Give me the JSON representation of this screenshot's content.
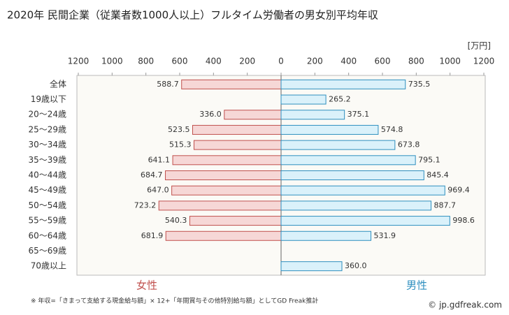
{
  "chart_data": {
    "type": "bar",
    "orientation": "horizontal",
    "title": "2020年 民間企業（従業者数1000人以上）フルタイム労働者の男女別平均年収",
    "unit": "[万円]",
    "categories": [
      "全体",
      "19歳以下",
      "20～24歳",
      "25～29歳",
      "30～34歳",
      "35～39歳",
      "40～44歳",
      "45～49歳",
      "50～54歳",
      "55～59歳",
      "60～64歳",
      "65～69歳",
      "70歳以上"
    ],
    "series": [
      {
        "name": "女性",
        "color": "#c0504d",
        "fill": "#f6d7d6",
        "side": "left",
        "values": [
          588.7,
          null,
          336.0,
          523.5,
          515.3,
          641.1,
          684.7,
          647.0,
          723.2,
          540.3,
          681.9,
          null,
          null
        ],
        "value_labels": [
          "588.7",
          null,
          "336.0",
          "523.5",
          "515.3",
          "641.1",
          "684.7",
          "647.0",
          "723.2",
          "540.3",
          "681.9",
          null,
          null
        ]
      },
      {
        "name": "男性",
        "color": "#2e8fbf",
        "fill": "#daf1fa",
        "side": "right",
        "values": [
          735.5,
          265.2,
          375.1,
          574.8,
          673.8,
          795.1,
          845.4,
          969.4,
          887.7,
          998.6,
          531.9,
          null,
          360.0
        ],
        "value_labels": [
          "735.5",
          "265.2",
          "375.1",
          "574.8",
          "673.8",
          "795.1",
          "845.4",
          "969.4",
          "887.7",
          "998.6",
          "531.9",
          null,
          "360.0"
        ]
      }
    ],
    "xlim": [
      0,
      1200
    ],
    "xticks": [
      0,
      200,
      400,
      600,
      800,
      1000,
      1200
    ],
    "footnote": "※ 年収=「きまって支給する現金給与額」× 12+「年間賞与その他特別給与額」としてGD Freak推計",
    "copyright": "© jp.gdfreak.com"
  }
}
